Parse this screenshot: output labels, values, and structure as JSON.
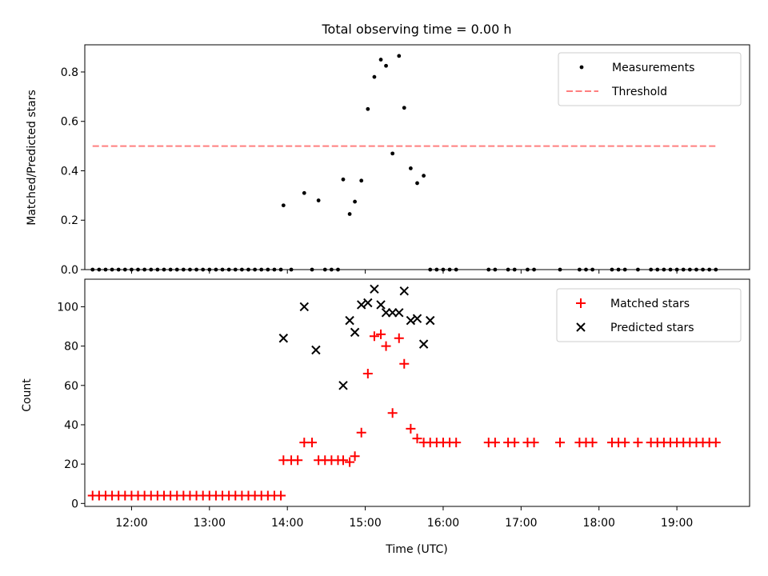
{
  "chart_data": [
    {
      "type": "scatter",
      "title": "Total observing time = 0.00 h",
      "ylabel": "Matched/Predicted stars",
      "xlim": [
        "11:24",
        "19:56"
      ],
      "ylim": [
        0,
        0.91
      ],
      "yticks": [
        "0.0",
        "0.2",
        "0.4",
        "0.6",
        "0.8"
      ],
      "legend": {
        "position": "top-right",
        "entries": [
          "Measurements",
          "Threshold"
        ]
      },
      "threshold": {
        "name": "Threshold",
        "value": 0.5,
        "x_range": [
          "11:30",
          "19:30"
        ],
        "color": "#ff7f7f",
        "style": "dashed"
      },
      "series": [
        {
          "name": "Measurements",
          "color": "#000000",
          "marker": "dot",
          "x": [
            "11:30",
            "11:35",
            "11:40",
            "11:45",
            "11:50",
            "11:55",
            "12:00",
            "12:05",
            "12:10",
            "12:15",
            "12:20",
            "12:25",
            "12:30",
            "12:35",
            "12:40",
            "12:45",
            "12:50",
            "12:55",
            "13:00",
            "13:05",
            "13:10",
            "13:15",
            "13:20",
            "13:25",
            "13:30",
            "13:35",
            "13:40",
            "13:45",
            "13:50",
            "13:55",
            "13:57",
            "14:03",
            "14:13",
            "14:19",
            "14:24",
            "14:29",
            "14:34",
            "14:39",
            "14:43",
            "14:48",
            "14:52",
            "14:57",
            "15:02",
            "15:07",
            "15:12",
            "15:16",
            "15:21",
            "15:26",
            "15:30",
            "15:35",
            "15:40",
            "15:45",
            "15:50",
            "15:55",
            "16:00",
            "16:05",
            "16:10",
            "16:35",
            "16:40",
            "16:50",
            "16:55",
            "17:05",
            "17:10",
            "17:30",
            "17:45",
            "17:50",
            "17:55",
            "18:10",
            "18:15",
            "18:20",
            "18:30",
            "18:40",
            "18:45",
            "18:50",
            "18:55",
            "19:00",
            "19:05",
            "19:10",
            "19:15",
            "19:20",
            "19:25",
            "19:30"
          ],
          "y": [
            0,
            0,
            0,
            0,
            0,
            0,
            0,
            0,
            0,
            0,
            0,
            0,
            0,
            0,
            0,
            0,
            0,
            0,
            0,
            0,
            0,
            0,
            0,
            0,
            0,
            0,
            0,
            0,
            0,
            0,
            0.26,
            0,
            0.31,
            0,
            0.28,
            0,
            0,
            0,
            0.365,
            0.225,
            0.275,
            0.36,
            0.65,
            0.78,
            0.85,
            0.825,
            0.47,
            0.865,
            0.655,
            0.41,
            0.35,
            0.38,
            0,
            0,
            0,
            0,
            0,
            0,
            0,
            0,
            0,
            0,
            0,
            0,
            0,
            0,
            0,
            0,
            0,
            0,
            0,
            0,
            0,
            0,
            0,
            0,
            0,
            0,
            0,
            0,
            0,
            0
          ]
        }
      ]
    },
    {
      "type": "scatter",
      "xlabel": "Time (UTC)",
      "ylabel": "Count",
      "xlim": [
        "11:24",
        "19:56"
      ],
      "ylim": [
        -1.5,
        114
      ],
      "xticks": [
        "12:00",
        "13:00",
        "14:00",
        "15:00",
        "16:00",
        "17:00",
        "18:00",
        "19:00"
      ],
      "yticks": [
        "0",
        "20",
        "40",
        "60",
        "80",
        "100"
      ],
      "legend": {
        "position": "top-right",
        "entries": [
          "Matched stars",
          "Predicted stars"
        ]
      },
      "series": [
        {
          "name": "Matched stars",
          "color": "#ff0000",
          "marker": "plus",
          "x": [
            "11:30",
            "11:35",
            "11:40",
            "11:45",
            "11:50",
            "11:55",
            "12:00",
            "12:05",
            "12:10",
            "12:15",
            "12:20",
            "12:25",
            "12:30",
            "12:35",
            "12:40",
            "12:45",
            "12:50",
            "12:55",
            "13:00",
            "13:05",
            "13:10",
            "13:15",
            "13:20",
            "13:25",
            "13:30",
            "13:35",
            "13:40",
            "13:45",
            "13:50",
            "13:55",
            "13:57",
            "14:03",
            "14:08",
            "14:13",
            "14:19",
            "14:24",
            "14:29",
            "14:34",
            "14:39",
            "14:43",
            "14:48",
            "14:52",
            "14:57",
            "15:02",
            "15:07",
            "15:12",
            "15:16",
            "15:21",
            "15:26",
            "15:30",
            "15:35",
            "15:40",
            "15:45",
            "15:50",
            "15:55",
            "16:00",
            "16:05",
            "16:10",
            "16:35",
            "16:40",
            "16:50",
            "16:55",
            "17:05",
            "17:10",
            "17:30",
            "17:45",
            "17:50",
            "17:55",
            "18:10",
            "18:15",
            "18:20",
            "18:30",
            "18:40",
            "18:45",
            "18:50",
            "18:55",
            "19:00",
            "19:05",
            "19:10",
            "19:15",
            "19:20",
            "19:25",
            "19:30"
          ],
          "y": [
            4,
            4,
            4,
            4,
            4,
            4,
            4,
            4,
            4,
            4,
            4,
            4,
            4,
            4,
            4,
            4,
            4,
            4,
            4,
            4,
            4,
            4,
            4,
            4,
            4,
            4,
            4,
            4,
            4,
            4,
            22,
            22,
            22,
            31,
            31,
            22,
            22,
            22,
            22,
            22,
            21,
            24,
            36,
            66,
            85,
            86,
            80,
            46,
            84,
            71,
            38,
            33,
            31,
            31,
            31,
            31,
            31,
            31,
            31,
            31,
            31,
            31,
            31,
            31,
            31,
            31,
            31,
            31,
            31,
            31,
            31,
            31,
            31,
            31,
            31,
            31,
            31,
            31,
            31,
            31,
            31,
            31,
            31
          ]
        },
        {
          "name": "Predicted stars",
          "color": "#000000",
          "marker": "x",
          "x": [
            "13:57",
            "14:13",
            "14:22",
            "14:43",
            "14:48",
            "14:52",
            "14:57",
            "15:02",
            "15:07",
            "15:12",
            "15:16",
            "15:21",
            "15:26",
            "15:30",
            "15:35",
            "15:40",
            "15:45",
            "15:50"
          ],
          "y": [
            84,
            100,
            78,
            60,
            93,
            87,
            101,
            102,
            109,
            101,
            97,
            97,
            97,
            108,
            93,
            94,
            81,
            93
          ]
        }
      ]
    }
  ]
}
